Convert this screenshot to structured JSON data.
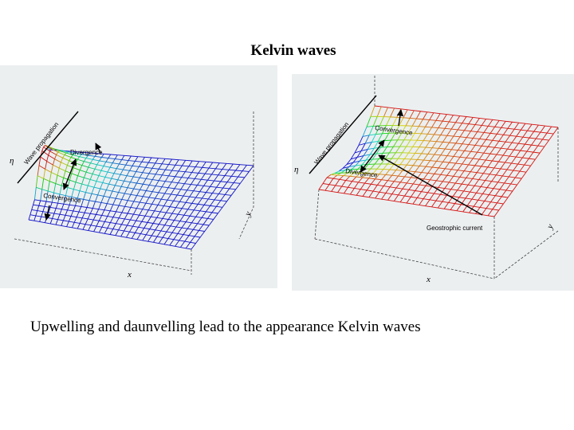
{
  "title": "Kelvin waves",
  "figures": [
    {
      "labels": {
        "eta": "η",
        "wave_propagation": "Wave propagation",
        "divergence": "Divergence",
        "convergence": "Convergence",
        "y": "y",
        "x": "x"
      }
    },
    {
      "labels": {
        "eta": "η",
        "wave_propagation": "Wave propagation",
        "convergence": "Convergence",
        "divergence": "Divergence",
        "geostrophic_current": "Geostrophic current",
        "y": "y",
        "x": "x"
      }
    }
  ],
  "caption": "Upwelling and daunvelling lead to the appearance Kelvin waves"
}
